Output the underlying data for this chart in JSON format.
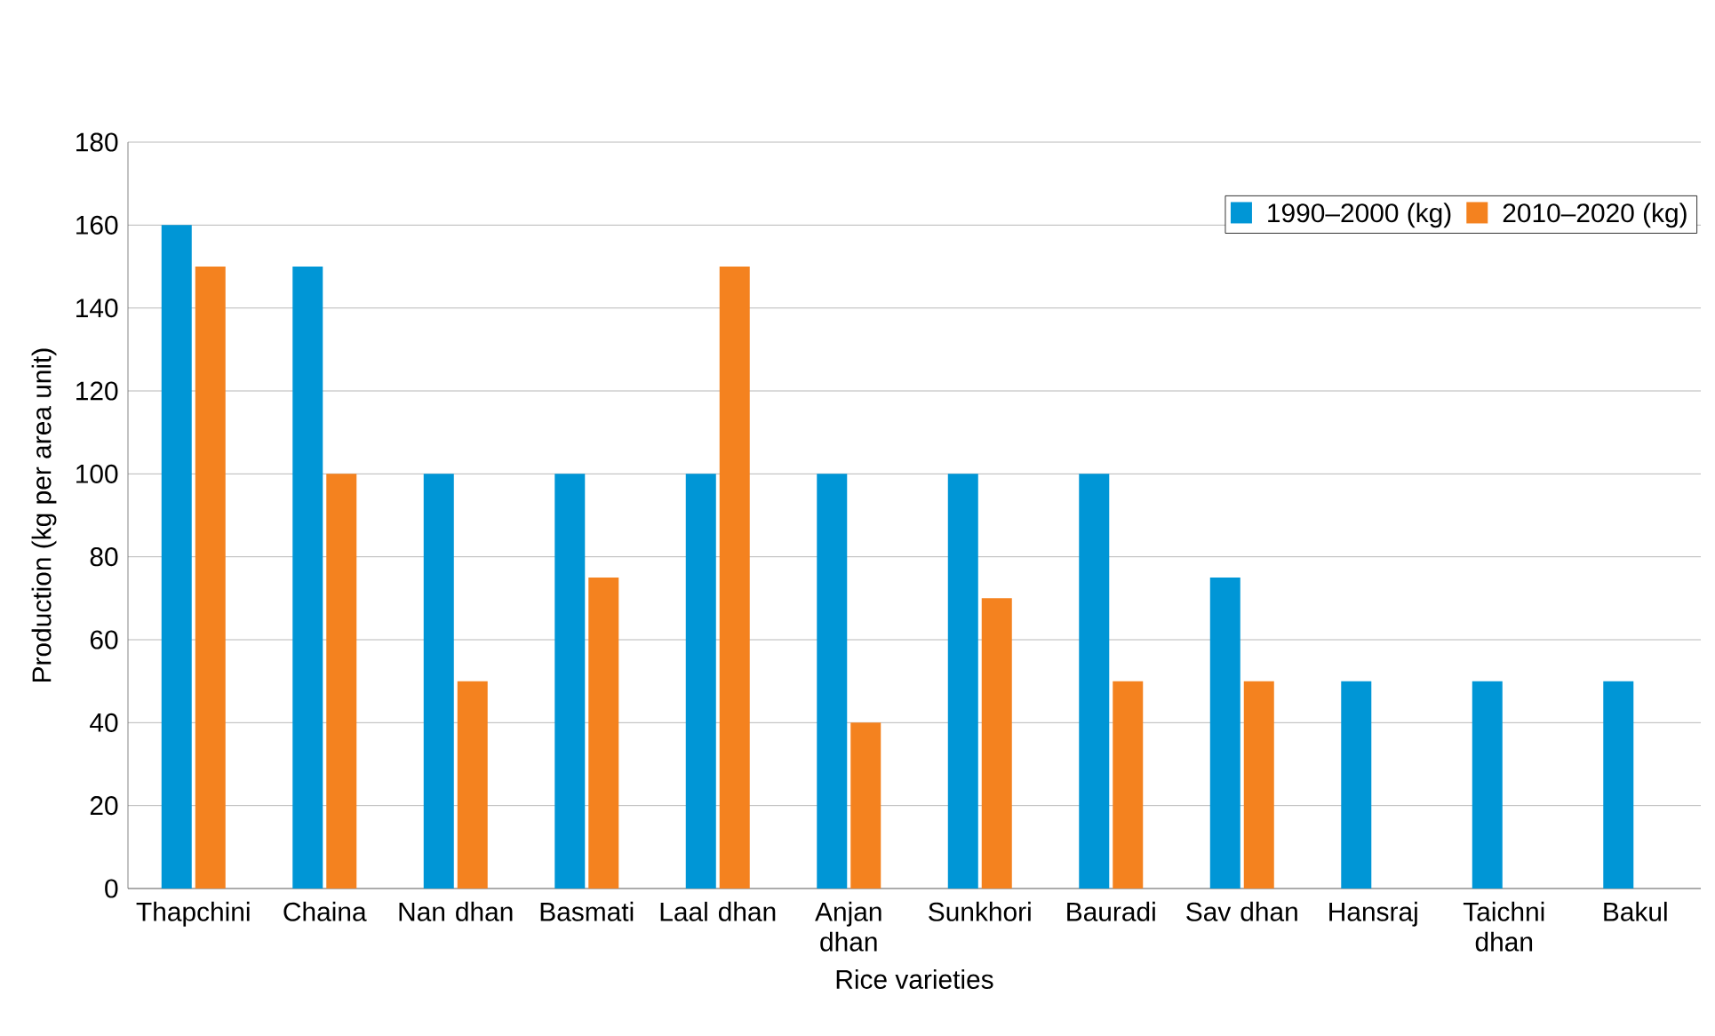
{
  "chart_data": {
    "type": "bar",
    "xlabel": "Rice varieties",
    "ylabel": "Production (kg per area unit)",
    "categories": [
      "Thapchini",
      "Chaina",
      "Nan dhan",
      "Basmati",
      "Laal dhan",
      "Anjan dhan",
      "Sunkhori",
      "Bauradi",
      "Sav dhan",
      "Hansraj",
      "Taichni dhan",
      "Bakul"
    ],
    "series": [
      {
        "name": "1990–2000 (kg)",
        "color": "#0096d6",
        "values": [
          160,
          150,
          100,
          100,
          100,
          100,
          100,
          100,
          75,
          50,
          50,
          50
        ]
      },
      {
        "name": "2010–2020 (kg)",
        "color": "#f4821f",
        "values": [
          150,
          100,
          50,
          75,
          150,
          40,
          70,
          50,
          50,
          null,
          null,
          null
        ]
      }
    ],
    "ylim": [
      0,
      180
    ],
    "yticks": [
      0,
      20,
      40,
      60,
      80,
      100,
      120,
      140,
      160,
      180
    ],
    "grid": "y",
    "legend": "top right"
  }
}
